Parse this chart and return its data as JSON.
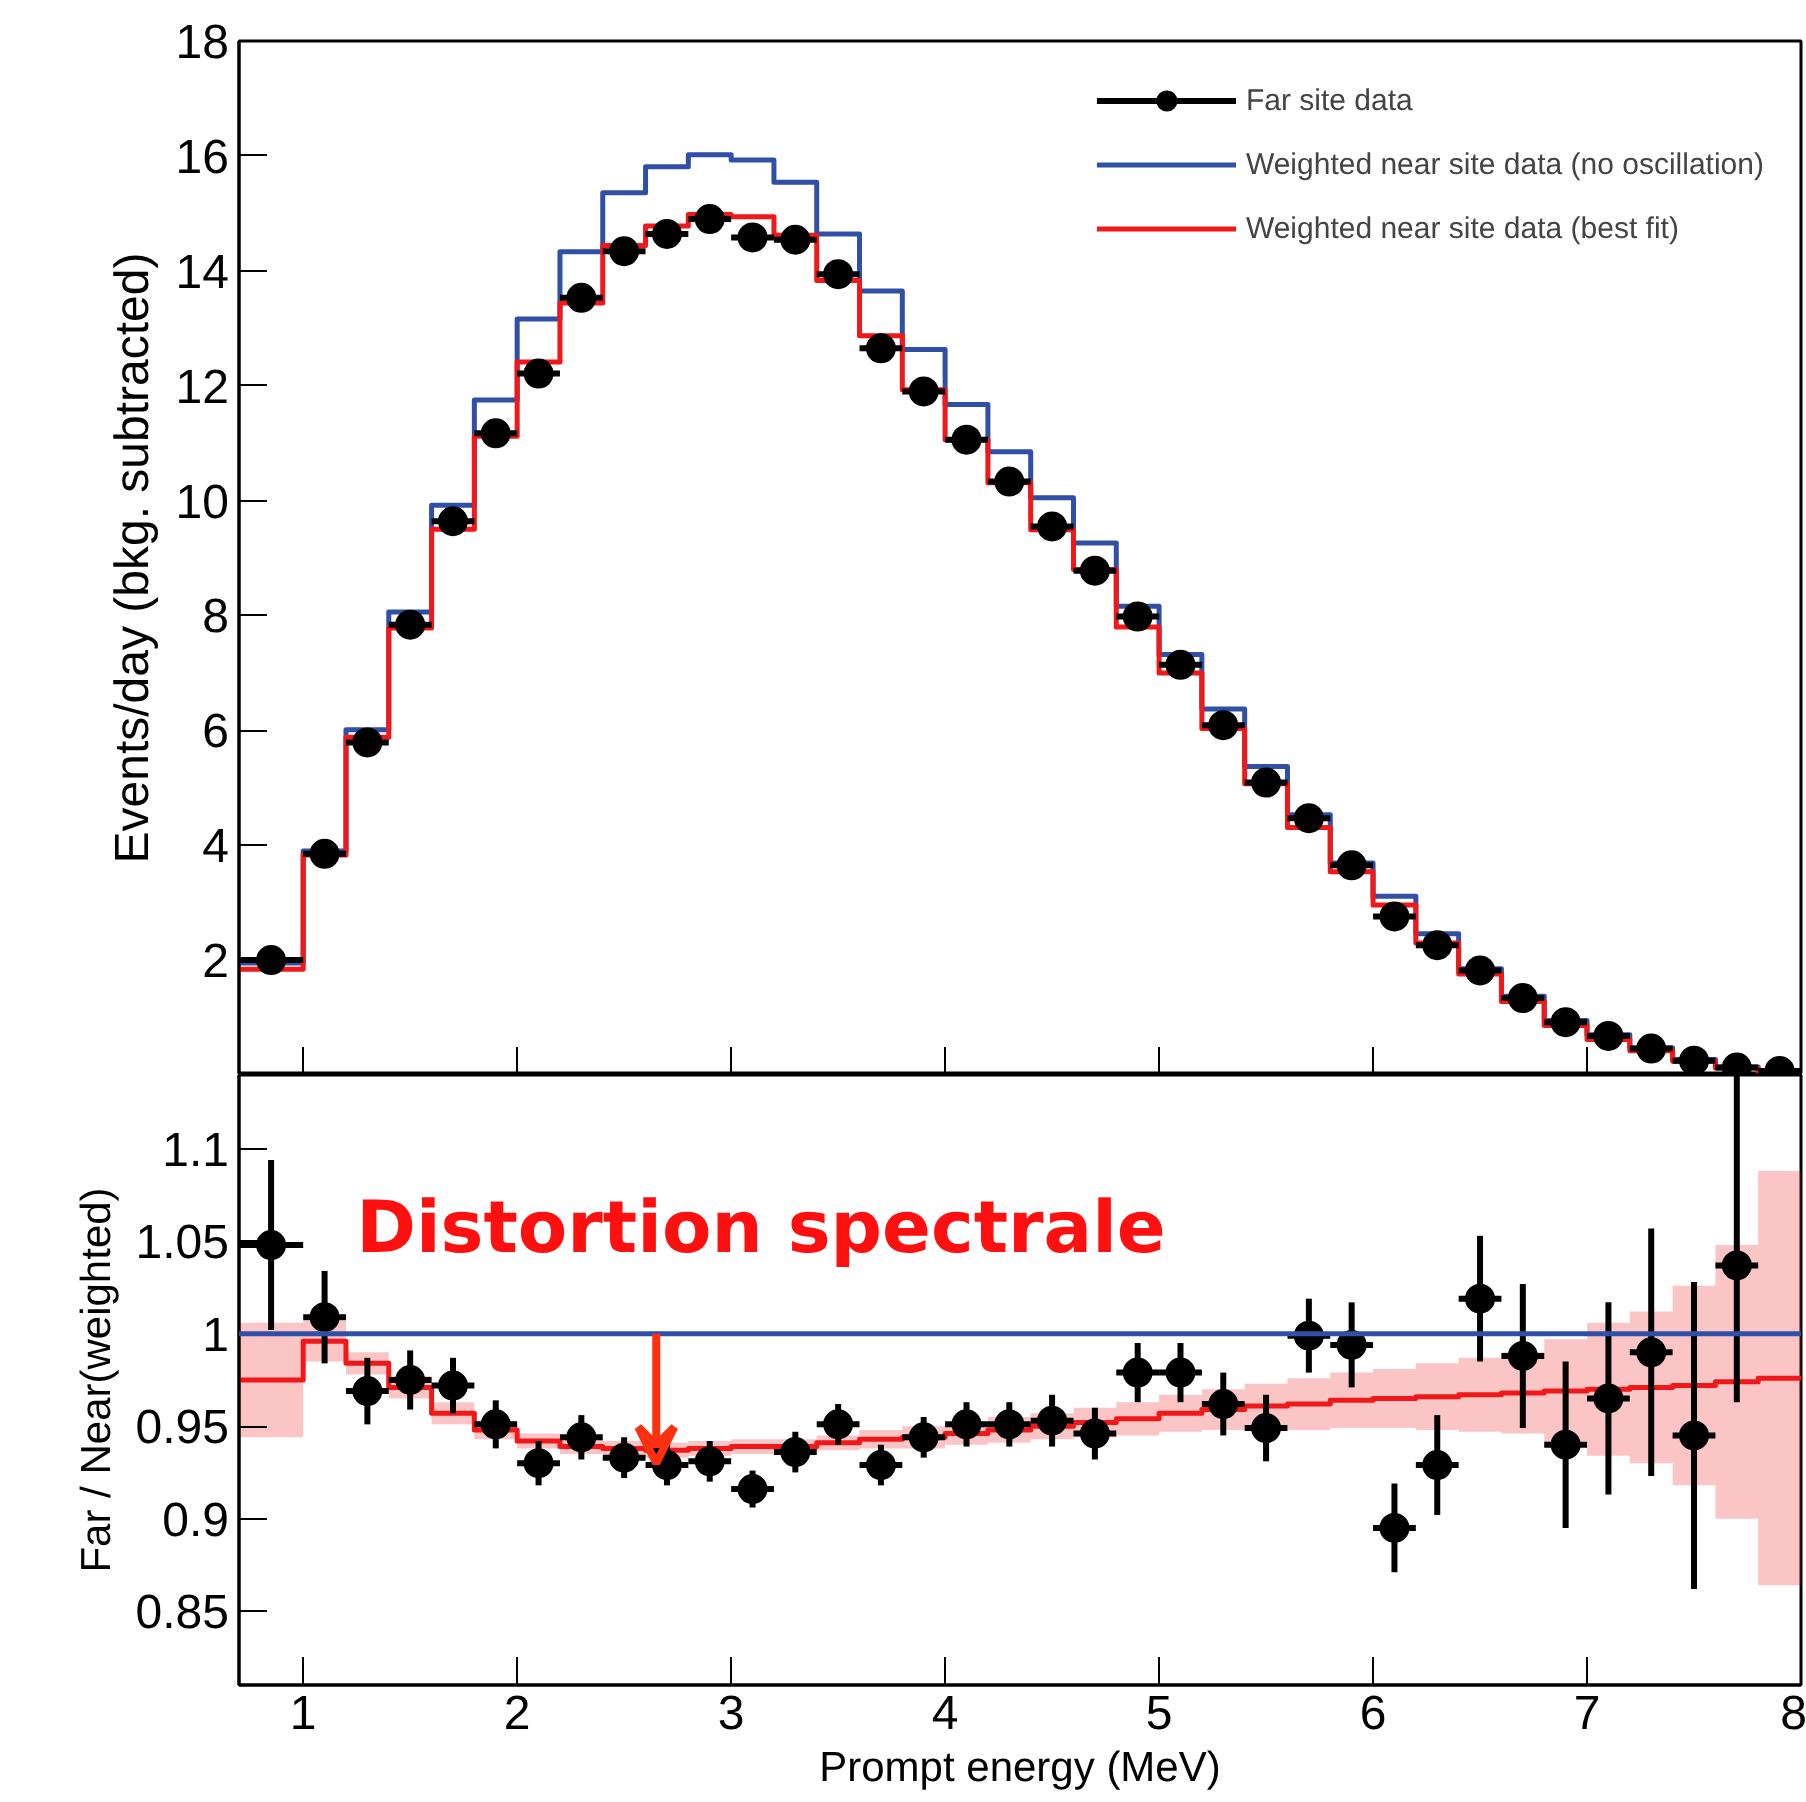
{
  "chart_data": [
    {
      "type": "histogram",
      "ylabel": "Events/day (bkg. subtracted)",
      "xlim": [
        0.7,
        8
      ],
      "xticks": [
        1,
        2,
        3,
        4,
        5,
        6,
        7,
        8
      ],
      "ylim": [
        0,
        18
      ],
      "yticks": [
        2,
        4,
        6,
        8,
        10,
        12,
        14,
        16,
        18
      ],
      "tick_labels": "y",
      "grid": false,
      "legend": "top right",
      "bins": [
        0.7,
        1.0,
        1.2,
        1.4,
        1.6,
        1.8,
        2.0,
        2.2,
        2.4,
        2.6,
        2.8,
        3.0,
        3.2,
        3.4,
        3.6,
        3.8,
        4.0,
        4.2,
        4.4,
        4.6,
        4.8,
        5.0,
        5.2,
        5.4,
        5.6,
        5.8,
        6.0,
        6.2,
        6.4,
        6.6,
        6.8,
        7.0,
        7.2,
        7.4,
        7.6,
        7.8,
        8.0
      ],
      "series": [
        {
          "name": "Far site data",
          "type": "scatter",
          "marker": "circle",
          "color": "#000000",
          "x": [
            0.85,
            1.1,
            1.3,
            1.5,
            1.7,
            1.9,
            2.1,
            2.3,
            2.5,
            2.7,
            2.9,
            3.1,
            3.3,
            3.5,
            3.7,
            3.9,
            4.1,
            4.3,
            4.5,
            4.7,
            4.9,
            5.1,
            5.3,
            5.5,
            5.7,
            5.9,
            6.1,
            6.3,
            6.5,
            6.7,
            6.9,
            7.1,
            7.3,
            7.5,
            7.7,
            7.9
          ],
          "values": [
            2.0,
            3.85,
            5.79,
            7.84,
            9.64,
            11.17,
            12.21,
            13.53,
            14.34,
            14.64,
            14.9,
            14.58,
            14.54,
            13.94,
            12.65,
            11.9,
            11.06,
            10.33,
            9.55,
            8.78,
            7.98,
            7.14,
            6.09,
            5.09,
            4.47,
            3.65,
            2.76,
            2.26,
            1.82,
            1.34,
            0.92,
            0.68,
            0.46,
            0.25,
            0.13,
            0.07
          ],
          "xerrors": [
            0.15,
            0.1,
            0.1,
            0.1,
            0.1,
            0.1,
            0.1,
            0.1,
            0.1,
            0.1,
            0.1,
            0.1,
            0.1,
            0.1,
            0.1,
            0.1,
            0.1,
            0.1,
            0.1,
            0.1,
            0.1,
            0.1,
            0.1,
            0.1,
            0.1,
            0.1,
            0.1,
            0.1,
            0.1,
            0.1,
            0.1,
            0.1,
            0.1,
            0.1,
            0.1,
            0.1
          ]
        },
        {
          "name": "Weighted near site data (no oscillation)",
          "color": "#3050a8",
          "values": [
            1.95,
            3.9,
            6.01,
            8.06,
            9.92,
            11.75,
            13.16,
            14.33,
            15.36,
            15.81,
            16.02,
            15.93,
            15.54,
            14.64,
            13.65,
            12.63,
            11.67,
            10.85,
            10.05,
            9.26,
            8.16,
            7.32,
            6.37,
            5.37,
            4.53,
            3.69,
            3.11,
            2.46,
            1.85,
            1.37,
            0.95,
            0.7,
            0.47,
            0.27,
            0.14,
            0.07
          ]
        },
        {
          "name": "Weighted near site data (best fit)",
          "color": "#f01818",
          "values": [
            1.84,
            3.83,
            5.88,
            7.78,
            9.5,
            11.12,
            12.41,
            13.44,
            14.44,
            14.78,
            14.98,
            14.94,
            14.62,
            13.83,
            12.87,
            11.93,
            11.06,
            10.31,
            9.49,
            8.8,
            7.8,
            7.0,
            6.03,
            5.07,
            4.31,
            3.54,
            2.96,
            2.3,
            1.76,
            1.28,
            0.86,
            0.62,
            0.42,
            0.24,
            0.12,
            0.06
          ]
        }
      ]
    },
    {
      "type": "step",
      "xlabel": "Prompt energy (MeV)",
      "ylabel": "Far / Near(weighted)",
      "xlim": [
        0.7,
        8
      ],
      "xticks": [
        1,
        2,
        3,
        4,
        5,
        6,
        7,
        8
      ],
      "ylim": [
        0.81,
        1.14
      ],
      "yticks": [
        0.85,
        0.9,
        0.95,
        1,
        1.05,
        1.1
      ],
      "grid": false,
      "ref_lines": [
        {
          "axis": "y",
          "value": 1,
          "color": "#3050a8"
        }
      ],
      "annotations": [
        {
          "text": "Distortion spectrale",
          "x": 2.65,
          "y": 0.93
        }
      ],
      "series": [
        {
          "color": "#f01818",
          "x": [
            0.7,
            1.0,
            1.2,
            1.4,
            1.6,
            1.8,
            2.0,
            2.2,
            2.4,
            2.6,
            2.8,
            3.0,
            3.2,
            3.4,
            3.6,
            3.8,
            4.0,
            4.2,
            4.4,
            4.6,
            4.8,
            5.0,
            5.2,
            5.4,
            5.6,
            5.8,
            6.0,
            6.2,
            6.4,
            6.6,
            6.8,
            7.0,
            7.2,
            7.4,
            7.6,
            7.8,
            8.0
          ],
          "values": [
            0.975,
            0.996,
            0.984,
            0.971,
            0.957,
            0.948,
            0.942,
            0.939,
            0.938,
            0.937,
            0.938,
            0.939,
            0.939,
            0.941,
            0.943,
            0.944,
            0.946,
            0.948,
            0.95,
            0.952,
            0.954,
            0.957,
            0.959,
            0.961,
            0.962,
            0.964,
            0.965,
            0.966,
            0.967,
            0.968,
            0.969,
            0.97,
            0.971,
            0.972,
            0.974,
            0.976,
            0.976
          ],
          "lower": [
            0.944,
            0.985,
            0.978,
            0.965,
            0.951,
            0.943,
            0.938,
            0.935,
            0.934,
            0.933,
            0.934,
            0.935,
            0.935,
            0.937,
            0.938,
            0.938,
            0.94,
            0.941,
            0.943,
            0.944,
            0.945,
            0.947,
            0.948,
            0.949,
            0.948,
            0.949,
            0.949,
            0.948,
            0.947,
            0.946,
            0.941,
            0.934,
            0.93,
            0.918,
            0.9,
            0.864,
            0.864
          ],
          "upper": [
            1.006,
            1.007,
            0.99,
            0.977,
            0.963,
            0.953,
            0.946,
            0.943,
            0.942,
            0.941,
            0.942,
            0.943,
            0.943,
            0.945,
            0.948,
            0.95,
            0.952,
            0.955,
            0.957,
            0.96,
            0.963,
            0.967,
            0.97,
            0.973,
            0.976,
            0.979,
            0.981,
            0.984,
            0.987,
            0.99,
            0.997,
            1.006,
            1.012,
            1.026,
            1.048,
            1.088,
            1.088
          ]
        },
        {
          "type": "scatter",
          "marker": "circle",
          "color": "#000000",
          "x": [
            0.85,
            1.1,
            1.3,
            1.5,
            1.7,
            1.9,
            2.1,
            2.3,
            2.5,
            2.7,
            2.9,
            3.1,
            3.3,
            3.5,
            3.7,
            3.9,
            4.1,
            4.3,
            4.5,
            4.7,
            4.9,
            5.1,
            5.3,
            5.5,
            5.7,
            5.9,
            6.1,
            6.3,
            6.5,
            6.7,
            6.9,
            7.1,
            7.3,
            7.5,
            7.7
          ],
          "values": [
            1.048,
            1.009,
            0.969,
            0.975,
            0.972,
            0.951,
            0.93,
            0.944,
            0.933,
            0.929,
            0.931,
            0.916,
            0.936,
            0.951,
            0.929,
            0.944,
            0.951,
            0.951,
            0.953,
            0.946,
            0.979,
            0.979,
            0.962,
            0.949,
            0.999,
            0.994,
            0.895,
            0.929,
            1.019,
            0.988,
            0.94,
            0.965,
            0.99,
            0.945,
            1.037
          ],
          "errors": [
            0.046,
            0.025,
            0.018,
            0.016,
            0.015,
            0.013,
            0.012,
            0.012,
            0.011,
            0.011,
            0.011,
            0.01,
            0.011,
            0.011,
            0.011,
            0.011,
            0.012,
            0.012,
            0.014,
            0.014,
            0.016,
            0.016,
            0.017,
            0.018,
            0.02,
            0.023,
            0.024,
            0.027,
            0.034,
            0.039,
            0.045,
            0.052,
            0.067,
            0.083,
            [
              0.963,
              1.14
            ]
          ],
          "xerrors": [
            0.15,
            0.1,
            0.1,
            0.1,
            0.1,
            0.1,
            0.1,
            0.1,
            0.1,
            0.1,
            0.1,
            0.1,
            0.1,
            0.1,
            0.1,
            0.1,
            0.1,
            0.1,
            0.1,
            0.1,
            0.1,
            0.1,
            0.1,
            0.1,
            0.1,
            0.1,
            0.1,
            0.1,
            0.1,
            0.1,
            0.1,
            0.1,
            0.1,
            0.1,
            0.1
          ]
        }
      ]
    }
  ]
}
